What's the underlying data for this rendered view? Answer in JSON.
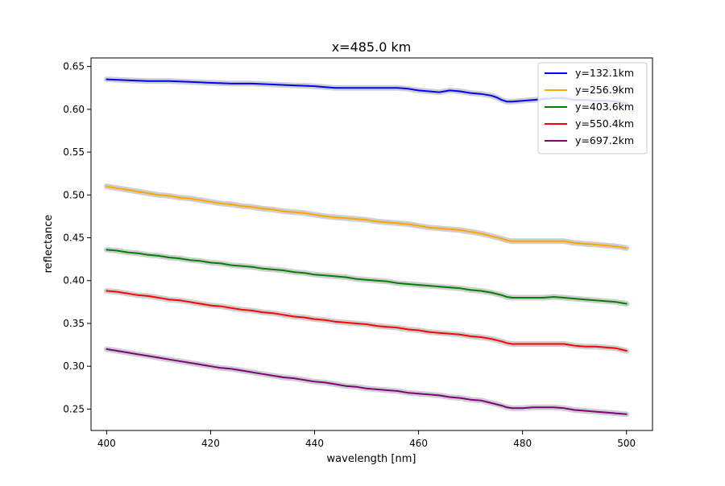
{
  "chart_data": {
    "type": "line",
    "title": "x=485.0 km",
    "xlabel": "wavelength [nm]",
    "ylabel": "reflectance",
    "xlim": [
      397,
      505
    ],
    "ylim": [
      0.225,
      0.66
    ],
    "xticks": [
      400,
      420,
      440,
      460,
      480,
      500
    ],
    "yticks": [
      0.25,
      0.3,
      0.35,
      0.4,
      0.45,
      0.5,
      0.55,
      0.6,
      0.65
    ],
    "grid": false,
    "legend_position": "top-right",
    "band_color": "#bbbbbb",
    "series": [
      {
        "name": "y=132.1km",
        "color": "#0000ff",
        "points": [
          [
            400,
            0.635
          ],
          [
            404,
            0.634
          ],
          [
            408,
            0.633
          ],
          [
            412,
            0.633
          ],
          [
            416,
            0.632
          ],
          [
            420,
            0.631
          ],
          [
            424,
            0.63
          ],
          [
            428,
            0.63
          ],
          [
            432,
            0.629
          ],
          [
            436,
            0.628
          ],
          [
            440,
            0.627
          ],
          [
            442,
            0.626
          ],
          [
            444,
            0.625
          ],
          [
            446,
            0.625
          ],
          [
            448,
            0.625
          ],
          [
            450,
            0.625
          ],
          [
            454,
            0.625
          ],
          [
            456,
            0.625
          ],
          [
            458,
            0.624
          ],
          [
            460,
            0.622
          ],
          [
            462,
            0.621
          ],
          [
            464,
            0.62
          ],
          [
            466,
            0.622
          ],
          [
            468,
            0.621
          ],
          [
            470,
            0.619
          ],
          [
            472,
            0.618
          ],
          [
            474,
            0.616
          ],
          [
            475,
            0.614
          ],
          [
            476,
            0.611
          ],
          [
            477,
            0.609
          ],
          [
            478,
            0.609
          ],
          [
            480,
            0.61
          ],
          [
            482,
            0.611
          ],
          [
            484,
            0.612
          ],
          [
            486,
            0.613
          ],
          [
            488,
            0.613
          ],
          [
            490,
            0.611
          ],
          [
            492,
            0.611
          ],
          [
            494,
            0.61
          ],
          [
            496,
            0.61
          ],
          [
            498,
            0.609
          ],
          [
            500,
            0.607
          ]
        ]
      },
      {
        "name": "y=256.9km",
        "color": "#ffa500",
        "points": [
          [
            400,
            0.51
          ],
          [
            402,
            0.508
          ],
          [
            404,
            0.506
          ],
          [
            406,
            0.504
          ],
          [
            408,
            0.502
          ],
          [
            410,
            0.5
          ],
          [
            412,
            0.499
          ],
          [
            414,
            0.497
          ],
          [
            416,
            0.496
          ],
          [
            418,
            0.494
          ],
          [
            420,
            0.492
          ],
          [
            422,
            0.49
          ],
          [
            424,
            0.489
          ],
          [
            426,
            0.487
          ],
          [
            428,
            0.486
          ],
          [
            430,
            0.484
          ],
          [
            432,
            0.483
          ],
          [
            434,
            0.481
          ],
          [
            436,
            0.48
          ],
          [
            438,
            0.479
          ],
          [
            440,
            0.477
          ],
          [
            442,
            0.475
          ],
          [
            444,
            0.474
          ],
          [
            446,
            0.473
          ],
          [
            448,
            0.472
          ],
          [
            450,
            0.471
          ],
          [
            452,
            0.469
          ],
          [
            454,
            0.468
          ],
          [
            456,
            0.467
          ],
          [
            458,
            0.466
          ],
          [
            460,
            0.464
          ],
          [
            462,
            0.462
          ],
          [
            464,
            0.461
          ],
          [
            466,
            0.46
          ],
          [
            468,
            0.459
          ],
          [
            470,
            0.457
          ],
          [
            472,
            0.455
          ],
          [
            474,
            0.452
          ],
          [
            476,
            0.449
          ],
          [
            477,
            0.447
          ],
          [
            478,
            0.446
          ],
          [
            480,
            0.446
          ],
          [
            482,
            0.446
          ],
          [
            484,
            0.446
          ],
          [
            486,
            0.446
          ],
          [
            488,
            0.446
          ],
          [
            490,
            0.444
          ],
          [
            492,
            0.443
          ],
          [
            494,
            0.442
          ],
          [
            496,
            0.441
          ],
          [
            498,
            0.44
          ],
          [
            500,
            0.438
          ]
        ]
      },
      {
        "name": "y=403.6km",
        "color": "#008000",
        "points": [
          [
            400,
            0.436
          ],
          [
            402,
            0.435
          ],
          [
            404,
            0.433
          ],
          [
            406,
            0.432
          ],
          [
            408,
            0.43
          ],
          [
            410,
            0.429
          ],
          [
            412,
            0.427
          ],
          [
            414,
            0.426
          ],
          [
            416,
            0.424
          ],
          [
            418,
            0.423
          ],
          [
            420,
            0.421
          ],
          [
            422,
            0.42
          ],
          [
            424,
            0.418
          ],
          [
            426,
            0.417
          ],
          [
            428,
            0.416
          ],
          [
            430,
            0.414
          ],
          [
            432,
            0.413
          ],
          [
            434,
            0.412
          ],
          [
            436,
            0.41
          ],
          [
            438,
            0.409
          ],
          [
            440,
            0.407
          ],
          [
            442,
            0.406
          ],
          [
            444,
            0.405
          ],
          [
            446,
            0.404
          ],
          [
            448,
            0.402
          ],
          [
            450,
            0.401
          ],
          [
            452,
            0.4
          ],
          [
            454,
            0.399
          ],
          [
            456,
            0.397
          ],
          [
            458,
            0.396
          ],
          [
            460,
            0.395
          ],
          [
            462,
            0.394
          ],
          [
            464,
            0.393
          ],
          [
            466,
            0.392
          ],
          [
            468,
            0.391
          ],
          [
            470,
            0.389
          ],
          [
            472,
            0.388
          ],
          [
            474,
            0.386
          ],
          [
            476,
            0.383
          ],
          [
            477,
            0.381
          ],
          [
            478,
            0.38
          ],
          [
            480,
            0.38
          ],
          [
            482,
            0.38
          ],
          [
            484,
            0.38
          ],
          [
            486,
            0.381
          ],
          [
            488,
            0.38
          ],
          [
            490,
            0.379
          ],
          [
            492,
            0.378
          ],
          [
            494,
            0.377
          ],
          [
            496,
            0.376
          ],
          [
            498,
            0.375
          ],
          [
            500,
            0.373
          ]
        ]
      },
      {
        "name": "y=550.4km",
        "color": "#ff0000",
        "points": [
          [
            400,
            0.388
          ],
          [
            402,
            0.387
          ],
          [
            404,
            0.385
          ],
          [
            406,
            0.383
          ],
          [
            408,
            0.382
          ],
          [
            410,
            0.38
          ],
          [
            412,
            0.378
          ],
          [
            414,
            0.377
          ],
          [
            416,
            0.375
          ],
          [
            418,
            0.373
          ],
          [
            420,
            0.371
          ],
          [
            422,
            0.37
          ],
          [
            424,
            0.368
          ],
          [
            426,
            0.366
          ],
          [
            428,
            0.365
          ],
          [
            430,
            0.363
          ],
          [
            432,
            0.362
          ],
          [
            434,
            0.36
          ],
          [
            436,
            0.358
          ],
          [
            438,
            0.357
          ],
          [
            440,
            0.355
          ],
          [
            442,
            0.354
          ],
          [
            444,
            0.352
          ],
          [
            446,
            0.351
          ],
          [
            448,
            0.35
          ],
          [
            450,
            0.349
          ],
          [
            452,
            0.347
          ],
          [
            454,
            0.346
          ],
          [
            456,
            0.345
          ],
          [
            458,
            0.343
          ],
          [
            460,
            0.342
          ],
          [
            462,
            0.34
          ],
          [
            464,
            0.339
          ],
          [
            466,
            0.338
          ],
          [
            468,
            0.337
          ],
          [
            470,
            0.335
          ],
          [
            472,
            0.334
          ],
          [
            474,
            0.332
          ],
          [
            476,
            0.329
          ],
          [
            477,
            0.327
          ],
          [
            478,
            0.326
          ],
          [
            480,
            0.326
          ],
          [
            482,
            0.326
          ],
          [
            484,
            0.326
          ],
          [
            486,
            0.326
          ],
          [
            488,
            0.326
          ],
          [
            490,
            0.324
          ],
          [
            492,
            0.323
          ],
          [
            494,
            0.323
          ],
          [
            496,
            0.322
          ],
          [
            498,
            0.321
          ],
          [
            500,
            0.318
          ]
        ]
      },
      {
        "name": "y=697.2km",
        "color": "#800080",
        "points": [
          [
            400,
            0.32
          ],
          [
            402,
            0.318
          ],
          [
            404,
            0.316
          ],
          [
            406,
            0.314
          ],
          [
            408,
            0.312
          ],
          [
            410,
            0.31
          ],
          [
            412,
            0.308
          ],
          [
            414,
            0.306
          ],
          [
            416,
            0.304
          ],
          [
            418,
            0.302
          ],
          [
            420,
            0.3
          ],
          [
            422,
            0.298
          ],
          [
            424,
            0.297
          ],
          [
            426,
            0.295
          ],
          [
            428,
            0.293
          ],
          [
            430,
            0.291
          ],
          [
            432,
            0.289
          ],
          [
            434,
            0.287
          ],
          [
            436,
            0.286
          ],
          [
            438,
            0.284
          ],
          [
            440,
            0.282
          ],
          [
            442,
            0.281
          ],
          [
            444,
            0.279
          ],
          [
            446,
            0.277
          ],
          [
            448,
            0.276
          ],
          [
            450,
            0.274
          ],
          [
            452,
            0.273
          ],
          [
            454,
            0.272
          ],
          [
            456,
            0.271
          ],
          [
            458,
            0.269
          ],
          [
            460,
            0.268
          ],
          [
            462,
            0.267
          ],
          [
            464,
            0.266
          ],
          [
            466,
            0.264
          ],
          [
            468,
            0.263
          ],
          [
            470,
            0.261
          ],
          [
            472,
            0.26
          ],
          [
            474,
            0.257
          ],
          [
            476,
            0.254
          ],
          [
            477,
            0.252
          ],
          [
            478,
            0.251
          ],
          [
            480,
            0.251
          ],
          [
            482,
            0.252
          ],
          [
            484,
            0.252
          ],
          [
            486,
            0.252
          ],
          [
            488,
            0.251
          ],
          [
            490,
            0.249
          ],
          [
            492,
            0.248
          ],
          [
            494,
            0.247
          ],
          [
            496,
            0.246
          ],
          [
            498,
            0.245
          ],
          [
            500,
            0.244
          ]
        ]
      }
    ]
  }
}
